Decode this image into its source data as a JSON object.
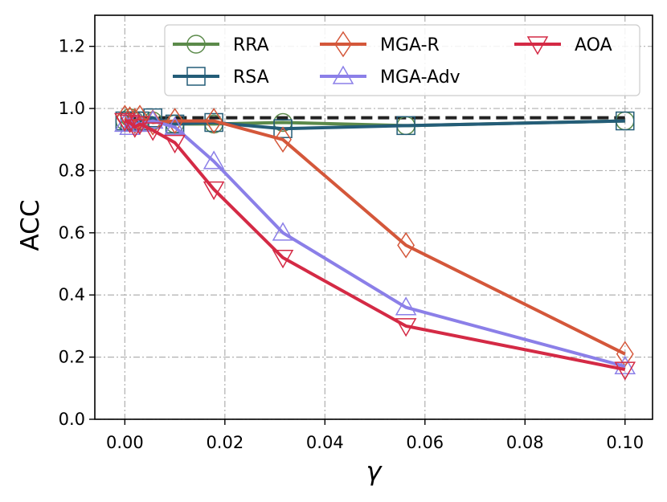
{
  "chart_data": {
    "type": "line",
    "xlabel": "γ",
    "ylabel": "ACC",
    "xlim": [
      -0.006,
      0.1055
    ],
    "ylim": [
      0.0,
      1.3
    ],
    "xticks": [
      0.0,
      0.02,
      0.04,
      0.06,
      0.08,
      0.1
    ],
    "xtick_labels": [
      "0.00",
      "0.02",
      "0.04",
      "0.06",
      "0.08",
      "0.10"
    ],
    "yticks": [
      0.0,
      0.2,
      0.4,
      0.6,
      0.8,
      1.0,
      1.2
    ],
    "ytick_labels": [
      "0.0",
      "0.2",
      "0.4",
      "0.6",
      "0.8",
      "1.0",
      "1.2"
    ],
    "grid": true,
    "legend_position": "top-right",
    "reference_line": {
      "y": 0.97,
      "x_range": [
        0.0,
        0.1
      ],
      "color": "#222222",
      "style": "dashed"
    },
    "series": [
      {
        "name": "RRA",
        "marker": "circle",
        "color": "#5b8a4a",
        "x": [
          0.0,
          0.001,
          0.002,
          0.003,
          0.0056,
          0.01,
          0.0178,
          0.0316,
          0.0562,
          0.1
        ],
        "y": [
          0.96,
          0.97,
          0.96,
          0.96,
          0.96,
          0.95,
          0.95,
          0.955,
          0.945,
          0.96
        ]
      },
      {
        "name": "RSA",
        "marker": "square",
        "color": "#245d78",
        "x": [
          0.0,
          0.001,
          0.002,
          0.003,
          0.0056,
          0.01,
          0.0178,
          0.0316,
          0.0562,
          0.1
        ],
        "y": [
          0.96,
          0.96,
          0.96,
          0.96,
          0.97,
          0.95,
          0.955,
          0.935,
          0.945,
          0.96
        ]
      },
      {
        "name": "MGA-R",
        "marker": "diamond",
        "color": "#d4573a",
        "x": [
          0.0,
          0.001,
          0.002,
          0.003,
          0.0056,
          0.01,
          0.0178,
          0.0316,
          0.0562,
          0.1
        ],
        "y": [
          0.97,
          0.965,
          0.96,
          0.97,
          0.955,
          0.96,
          0.96,
          0.9,
          0.56,
          0.21
        ]
      },
      {
        "name": "MGA-Adv",
        "marker": "triangle-up",
        "color": "#8b7fe8",
        "x": [
          0.0,
          0.001,
          0.002,
          0.003,
          0.0056,
          0.01,
          0.0178,
          0.0316,
          0.0562,
          0.1
        ],
        "y": [
          0.95,
          0.94,
          0.95,
          0.95,
          0.96,
          0.94,
          0.83,
          0.6,
          0.36,
          0.17
        ]
      },
      {
        "name": "AOA",
        "marker": "triangle-down",
        "color": "#d42a45",
        "x": [
          0.0,
          0.001,
          0.002,
          0.003,
          0.0056,
          0.01,
          0.0178,
          0.0316,
          0.0562,
          0.1
        ],
        "y": [
          0.96,
          0.955,
          0.94,
          0.95,
          0.93,
          0.89,
          0.74,
          0.52,
          0.3,
          0.16
        ]
      }
    ]
  }
}
